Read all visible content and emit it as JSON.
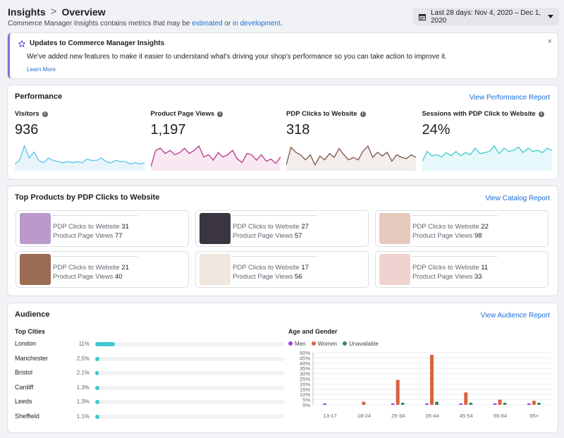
{
  "header": {
    "crumb1": "Insights",
    "crumb_sep": ">",
    "crumb2": "Overview",
    "sub_prefix": "Commerce Manager Insights contains metrics that may be",
    "sub_link1": "estimated",
    "sub_mid": "or",
    "sub_link2": "in development",
    "sub_end": ".",
    "date_range": "Last 28 days: Nov 4, 2020 – Dec 1, 2020"
  },
  "banner": {
    "title": "Updates to Commerce Manager Insights",
    "body": "We've added new features to make it easier to understand what's driving your shop's performance so you can take action to improve it.",
    "learn_more": "Learn More",
    "close": "×"
  },
  "performance": {
    "title": "Performance",
    "link": "View Performance Report",
    "metrics": [
      {
        "label": "Visitors",
        "value": "936",
        "color": "#58c4ea",
        "fill": "#e8f6fc",
        "trend": [
          5,
          8,
          20,
          10,
          15,
          8,
          6,
          10,
          8,
          7,
          6,
          7,
          6,
          7,
          6,
          9,
          8,
          8,
          10,
          7,
          6,
          8,
          7,
          7,
          5,
          6,
          5,
          6
        ]
      },
      {
        "label": "Product Page Views",
        "value": "1,197",
        "color": "#b5388b",
        "fill": "#f9e8f2",
        "trend": [
          3,
          18,
          20,
          15,
          18,
          14,
          16,
          20,
          15,
          18,
          22,
          12,
          14,
          9,
          16,
          12,
          14,
          18,
          10,
          7,
          15,
          14,
          9,
          14,
          8,
          10,
          6,
          12
        ]
      },
      {
        "label": "PDP Clicks to Website",
        "value": "318",
        "color": "#7d5644",
        "fill": "#f3eeeb",
        "trend": [
          4,
          18,
          14,
          12,
          8,
          12,
          4,
          11,
          8,
          13,
          10,
          17,
          12,
          8,
          10,
          8,
          15,
          19,
          10,
          14,
          11,
          14,
          7,
          12,
          10,
          9,
          12,
          10
        ]
      },
      {
        "label": "Sessions with PDP Click to Website",
        "value": "24%",
        "color": "#3fc9cf",
        "fill": "#e6f8f9",
        "trend": [
          8,
          17,
          13,
          14,
          12,
          16,
          13,
          17,
          13,
          16,
          14,
          20,
          15,
          16,
          17,
          22,
          15,
          20,
          17,
          18,
          21,
          16,
          20,
          17,
          18,
          16,
          20,
          18
        ]
      }
    ]
  },
  "products": {
    "title": "Top Products by PDP Clicks to Website",
    "link": "View Catalog Report",
    "clicks_label": "PDP Clicks to Website",
    "views_label": "Product Page Views",
    "items": [
      {
        "clicks": "31",
        "views": "77",
        "thumb": "#b99acb"
      },
      {
        "clicks": "27",
        "views": "57",
        "thumb": "#3a3540"
      },
      {
        "clicks": "22",
        "views": "98",
        "thumb": "#e5c9bd"
      },
      {
        "clicks": "21",
        "views": "40",
        "thumb": "#9c6b53"
      },
      {
        "clicks": "17",
        "views": "56",
        "thumb": "#efe6dd"
      },
      {
        "clicks": "11",
        "views": "33",
        "thumb": "#f0d3d0"
      }
    ]
  },
  "audience": {
    "title": "Audience",
    "link": "View Audience Report",
    "cities_title": "Top Cities",
    "cities": [
      {
        "name": "London",
        "pct": "11%",
        "value": 11
      },
      {
        "name": "Manchester",
        "pct": "2.5%",
        "value": 2.5
      },
      {
        "name": "Bristol",
        "pct": "2.1%",
        "value": 2.1
      },
      {
        "name": "Cardiff",
        "pct": "1.3%",
        "value": 1.3
      },
      {
        "name": "Leeds",
        "pct": "1.3%",
        "value": 1.3
      },
      {
        "name": "Sheffield",
        "pct": "1.1%",
        "value": 1.1
      }
    ],
    "age_title": "Age and Gender",
    "legend": [
      {
        "name": "Men",
        "color": "#9b3fd9"
      },
      {
        "name": "Women",
        "color": "#d9633f"
      },
      {
        "name": "Unavailable",
        "color": "#2e8a5a"
      }
    ]
  },
  "chart_data": {
    "type": "bar",
    "title": "Age and Gender",
    "categories": [
      "13-17",
      "18-24",
      "25-34",
      "35-44",
      "45-54",
      "55-64",
      "65+"
    ],
    "series": [
      {
        "name": "Men",
        "values": [
          1,
          0,
          1,
          1,
          1,
          1,
          1
        ]
      },
      {
        "name": "Women",
        "values": [
          0,
          3,
          24,
          48,
          12,
          5,
          4
        ]
      },
      {
        "name": "Unavailable",
        "values": [
          0,
          0,
          2,
          3,
          2,
          2,
          2
        ]
      }
    ],
    "yticks": [
      "0%",
      "5%",
      "10%",
      "15%",
      "20%",
      "25%",
      "30%",
      "35%",
      "40%",
      "45%",
      "50%"
    ],
    "ylim": [
      0,
      50
    ]
  }
}
